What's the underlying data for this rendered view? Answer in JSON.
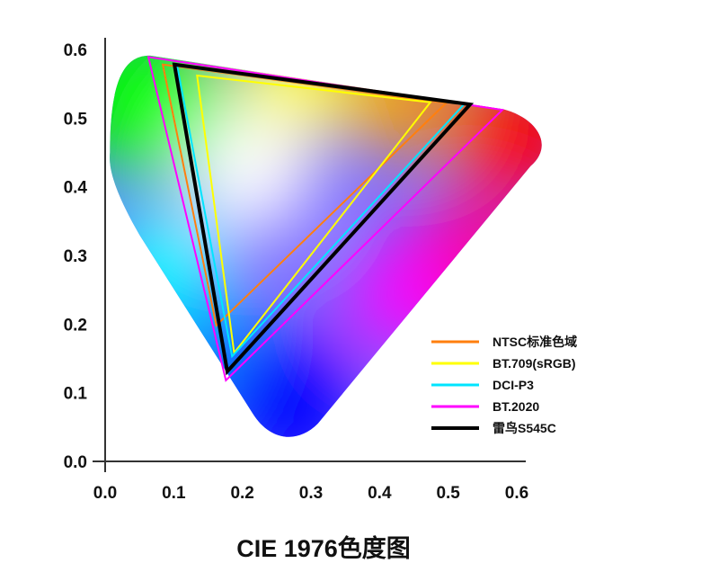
{
  "chart_data": {
    "type": "line",
    "title": "CIE 1976色度图",
    "xlim": [
      0.0,
      0.6
    ],
    "ylim": [
      0.0,
      0.6
    ],
    "x_ticks": [
      "0.0",
      "0.1",
      "0.2",
      "0.3",
      "0.4",
      "0.5",
      "0.6"
    ],
    "y_ticks": [
      "0.0",
      "0.1",
      "0.2",
      "0.3",
      "0.4",
      "0.5",
      "0.6"
    ],
    "grid": false,
    "legend_position": "bottom-right",
    "series": [
      {
        "name": "NTSC标准色域",
        "color": "#ff7f0e",
        "points": [
          [
            0.084,
            0.578
          ],
          [
            0.497,
            0.522
          ],
          [
            0.162,
            0.198
          ]
        ]
      },
      {
        "name": "BT.709(sRGB)",
        "color": "#ffff00",
        "points": [
          [
            0.134,
            0.562
          ],
          [
            0.474,
            0.523
          ],
          [
            0.188,
            0.158
          ]
        ]
      },
      {
        "name": "DCI-P3",
        "color": "#00e5ff",
        "points": [
          [
            0.105,
            0.576
          ],
          [
            0.523,
            0.52
          ],
          [
            0.185,
            0.153
          ]
        ]
      },
      {
        "name": "BT.2020",
        "color": "#ff00ff",
        "points": [
          [
            0.063,
            0.589
          ],
          [
            0.579,
            0.512
          ],
          [
            0.176,
            0.118
          ]
        ]
      },
      {
        "name": "雷鸟S545C",
        "color": "#000000",
        "points": [
          [
            0.101,
            0.578
          ],
          [
            0.532,
            0.52
          ],
          [
            0.178,
            0.131
          ]
        ]
      }
    ]
  }
}
